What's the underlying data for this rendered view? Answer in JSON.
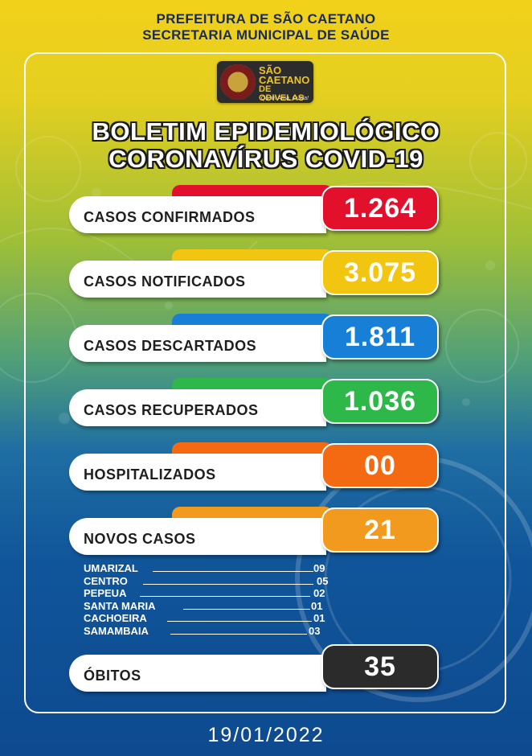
{
  "header": {
    "line1": "PREFEITURA DE SÃO CAETANO",
    "line2": "SECRETARIA MUNICIPAL DE SAÚDE"
  },
  "logo": {
    "line1": "SÃO",
    "line2": "CAETANO",
    "line3": "DE ODIVELAS",
    "slogan": "Quem Ama, Cuida!"
  },
  "title": {
    "line1": "BOLETIM EPIDEMIOLÓGICO",
    "line2": "CORONAVÍRUS COVID-19"
  },
  "stats": [
    {
      "label": "CASOS CONFIRMADOS",
      "value": "1.264",
      "color": "#e3102c"
    },
    {
      "label": "CASOS NOTIFICADOS",
      "value": "3.075",
      "color": "#f2c511"
    },
    {
      "label": "CASOS DESCARTADOS",
      "value": "1.811",
      "color": "#1780d6"
    },
    {
      "label": "CASOS RECUPERADOS",
      "value": "1.036",
      "color": "#2fb84a"
    },
    {
      "label": "HOSPITALIZADOS",
      "value": "00",
      "color": "#f36a12"
    },
    {
      "label": "NOVOS CASOS",
      "value": "21",
      "color": "#f29a1e"
    }
  ],
  "neighborhoods": [
    {
      "name": "UMARIZAL",
      "count": "09"
    },
    {
      "name": "CENTRO",
      "count": "05"
    },
    {
      "name": "PEPEUA",
      "count": "02"
    },
    {
      "name": "SANTA MARIA",
      "count": "01"
    },
    {
      "name": "CACHOEIRA",
      "count": "01"
    },
    {
      "name": "SAMAMBAIA",
      "count": "03"
    }
  ],
  "deaths": {
    "label": "ÓBITOS",
    "value": "35",
    "color": "#2b2b2b"
  },
  "date": "19/01/2022"
}
